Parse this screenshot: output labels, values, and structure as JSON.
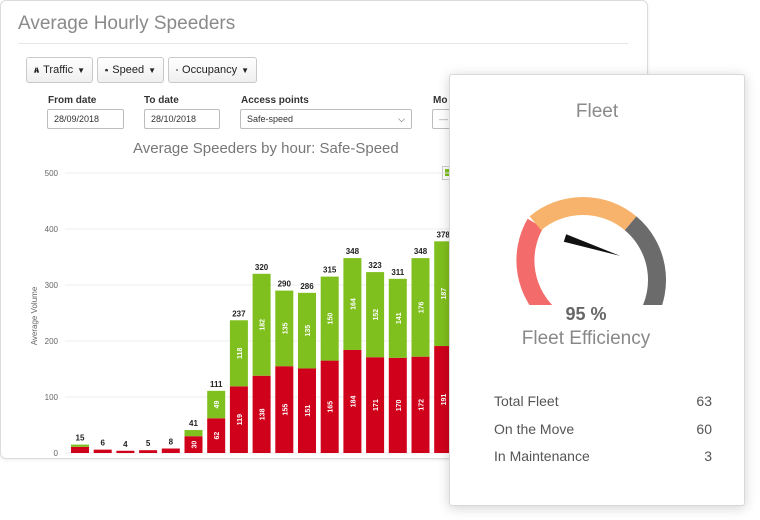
{
  "panel": {
    "title": "Average Hourly Speeders",
    "buttons": [
      {
        "label": "Traffic",
        "icon": "road-icon"
      },
      {
        "label": "Speed",
        "icon": "speedometer-icon"
      },
      {
        "label": "Occupancy",
        "icon": "home-icon"
      }
    ],
    "filters": {
      "from_date": {
        "label": "From date",
        "value": "28/09/2018"
      },
      "to_date": {
        "label": "To date",
        "value": "28/10/2018"
      },
      "access_points": {
        "label": "Access points",
        "value": "Safe-speed"
      },
      "more_label": "Mo"
    }
  },
  "chart_data": {
    "type": "bar",
    "stacked": true,
    "title": "Average Speeders by hour: Safe-Speed",
    "ylabel": "Average Volume",
    "ylim": [
      0,
      500
    ],
    "yticks": [
      0,
      100,
      200,
      300,
      400,
      500
    ],
    "totals": [
      15,
      6,
      4,
      5,
      8,
      41,
      111,
      237,
      320,
      290,
      286,
      315,
      348,
      323,
      311,
      348,
      378
    ],
    "series": [
      {
        "color": "#d0021b",
        "values": [
          11,
          6,
          4,
          5,
          8,
          30,
          62,
          119,
          138,
          155,
          151,
          165,
          184,
          171,
          170,
          172,
          191
        ]
      },
      {
        "color": "#7fbf1e",
        "values": [
          4,
          0,
          0,
          0,
          0,
          11,
          49,
          118,
          182,
          135,
          135,
          150,
          164,
          152,
          141,
          176,
          187
        ]
      }
    ],
    "value_labels_red": [
      "",
      "",
      "",
      "",
      "",
      "30",
      "62",
      "119",
      "138",
      "155",
      "151",
      "165",
      "184",
      "171",
      "170",
      "172",
      "191"
    ],
    "value_labels_green": [
      "",
      "",
      "",
      "",
      "",
      "",
      "49",
      "118",
      "182",
      "135",
      "135",
      "150",
      "164",
      "152",
      "141",
      "176",
      "187"
    ],
    "grid": true,
    "legend": "top-right"
  },
  "fleet": {
    "title": "Fleet",
    "efficiency_value": "95 %",
    "efficiency_fraction": 0.95,
    "efficiency_label": "Fleet Efficiency",
    "gauge_colors": {
      "red": "#f36b6b",
      "orange": "#f7b26b",
      "gray": "#6b6b6b",
      "needle": "#111111"
    },
    "stats": [
      {
        "label": "Total Fleet",
        "value": "63"
      },
      {
        "label": "On the Move",
        "value": "60"
      },
      {
        "label": "In Maintenance",
        "value": "3"
      }
    ]
  }
}
